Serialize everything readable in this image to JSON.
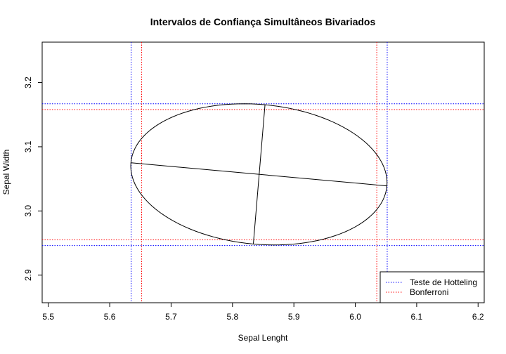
{
  "chart_data": {
    "type": "scatter",
    "title": "Intervalos de Confiança Simultâneos Bivariados",
    "xlabel": "Sepal Lenght",
    "ylabel": "Sepal Width",
    "xlim": [
      5.49,
      6.21
    ],
    "ylim": [
      2.857,
      3.263
    ],
    "xticks": [
      5.5,
      5.6,
      5.7,
      5.8,
      5.9,
      6.0,
      6.1,
      6.2
    ],
    "xtick_labels": [
      "5.5",
      "5.6",
      "5.7",
      "5.8",
      "5.9",
      "6.0",
      "6.1",
      "6.2"
    ],
    "yticks": [
      2.9,
      3.0,
      3.1,
      3.2
    ],
    "ytick_labels": [
      "2.9",
      "3.0",
      "3.1",
      "3.2"
    ],
    "grid": false,
    "ellipse": {
      "center": [
        5.843,
        3.057
      ],
      "major_axis": [
        [
          5.635,
          3.075
        ],
        [
          6.052,
          3.039
        ]
      ],
      "minor_axis": [
        [
          5.834,
          2.949
        ],
        [
          5.853,
          3.166
        ]
      ]
    },
    "series": [
      {
        "name": "Teste de Hotteling",
        "color": "#0000ff",
        "line_style": "dotted",
        "x_intervals": [
          5.635,
          6.052
        ],
        "y_intervals": [
          2.946,
          3.167
        ]
      },
      {
        "name": "Bonferroni",
        "color": "#ff0000",
        "line_style": "dotted",
        "x_intervals": [
          5.652,
          6.035
        ],
        "y_intervals": [
          2.955,
          3.158
        ]
      }
    ],
    "legend_position": "bottom-right"
  }
}
